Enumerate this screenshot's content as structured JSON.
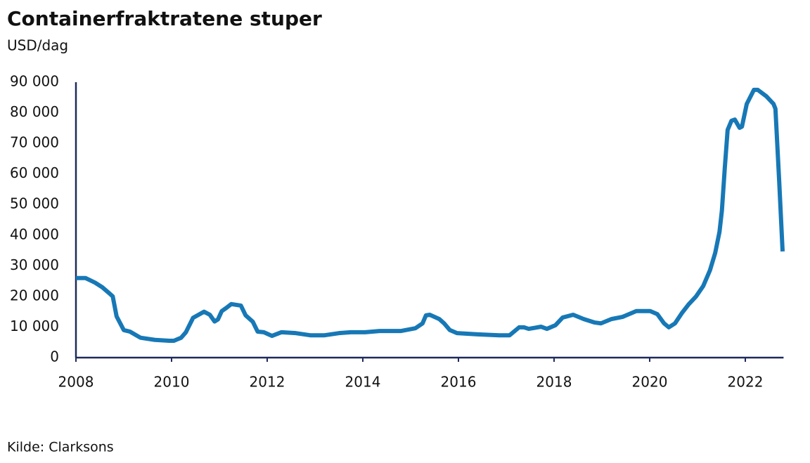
{
  "chart_data": {
    "type": "line",
    "title": "Containerfraktratene stuper",
    "subtitle": "USD/dag",
    "source": "Kilde: Clarksons",
    "x": [
      2008,
      2008.2,
      2008.4,
      2008.55,
      2008.7,
      2008.77,
      2008.85,
      2009.0,
      2009.13,
      2009.35,
      2009.65,
      2009.95,
      2010.05,
      2010.2,
      2010.3,
      2010.45,
      2010.68,
      2010.8,
      2010.9,
      2010.97,
      2011.05,
      2011.15,
      2011.25,
      2011.45,
      2011.55,
      2011.7,
      2011.8,
      2011.93,
      2012.1,
      2012.3,
      2012.6,
      2012.9,
      2013.2,
      2013.5,
      2013.75,
      2014.05,
      2014.35,
      2014.8,
      2015.1,
      2015.25,
      2015.32,
      2015.4,
      2015.6,
      2015.7,
      2015.82,
      2015.97,
      2016.4,
      2016.85,
      2017.07,
      2017.27,
      2017.37,
      2017.47,
      2017.73,
      2017.85,
      2018.03,
      2018.18,
      2018.4,
      2018.62,
      2018.84,
      2018.98,
      2019.2,
      2019.43,
      2019.72,
      2020.01,
      2020.16,
      2020.3,
      2020.4,
      2020.53,
      2020.68,
      2020.82,
      2020.97,
      2021.12,
      2021.26,
      2021.37,
      2021.46,
      2021.51,
      2021.57,
      2021.63,
      2021.71,
      2021.78,
      2021.88,
      2021.93,
      2022.03,
      2022.18,
      2022.26,
      2022.44,
      2022.59,
      2022.63,
      2022.71,
      2022.78
    ],
    "series": [
      {
        "name": "Containerfraktrate",
        "color": "#1778b6",
        "values": [
          26000,
          26000,
          24500,
          23000,
          21000,
          20000,
          13500,
          9000,
          8500,
          6500,
          5800,
          5500,
          5500,
          6500,
          8300,
          13000,
          15000,
          14000,
          11800,
          12500,
          15200,
          16300,
          17500,
          17000,
          13800,
          11700,
          8500,
          8300,
          7100,
          8300,
          8000,
          7300,
          7300,
          8000,
          8300,
          8300,
          8700,
          8700,
          9600,
          11200,
          13800,
          14000,
          12600,
          11200,
          9000,
          8000,
          7600,
          7300,
          7300,
          9900,
          9900,
          9400,
          10100,
          9400,
          10600,
          13100,
          14000,
          12600,
          11500,
          11200,
          12600,
          13300,
          15200,
          15200,
          14200,
          11200,
          9900,
          11200,
          14700,
          17500,
          20000,
          23400,
          28500,
          34200,
          41100,
          48000,
          61800,
          74400,
          77400,
          77800,
          75100,
          75500,
          82900,
          87500,
          87500,
          85400,
          82900,
          81300,
          57200,
          34700
        ]
      }
    ],
    "xlim": [
      2008,
      2022.8
    ],
    "xticks": [
      2008,
      2010,
      2012,
      2014,
      2016,
      2018,
      2020,
      2022
    ],
    "ylim": [
      0,
      90000
    ],
    "yticks": [
      0,
      {
        "value": 10000,
        "label": "10 000"
      },
      {
        "value": 20000,
        "label": "20 000"
      },
      {
        "value": 30000,
        "label": "30 000"
      },
      {
        "value": 40000,
        "label": "40 000"
      },
      {
        "value": 50000,
        "label": "50 000"
      },
      {
        "value": 60000,
        "label": "60 000"
      },
      {
        "value": 70000,
        "label": "70 000"
      },
      {
        "value": 80000,
        "label": "80 000"
      },
      {
        "value": 90000,
        "label": "90 000"
      }
    ],
    "axis_color": "#1f2a5a"
  }
}
